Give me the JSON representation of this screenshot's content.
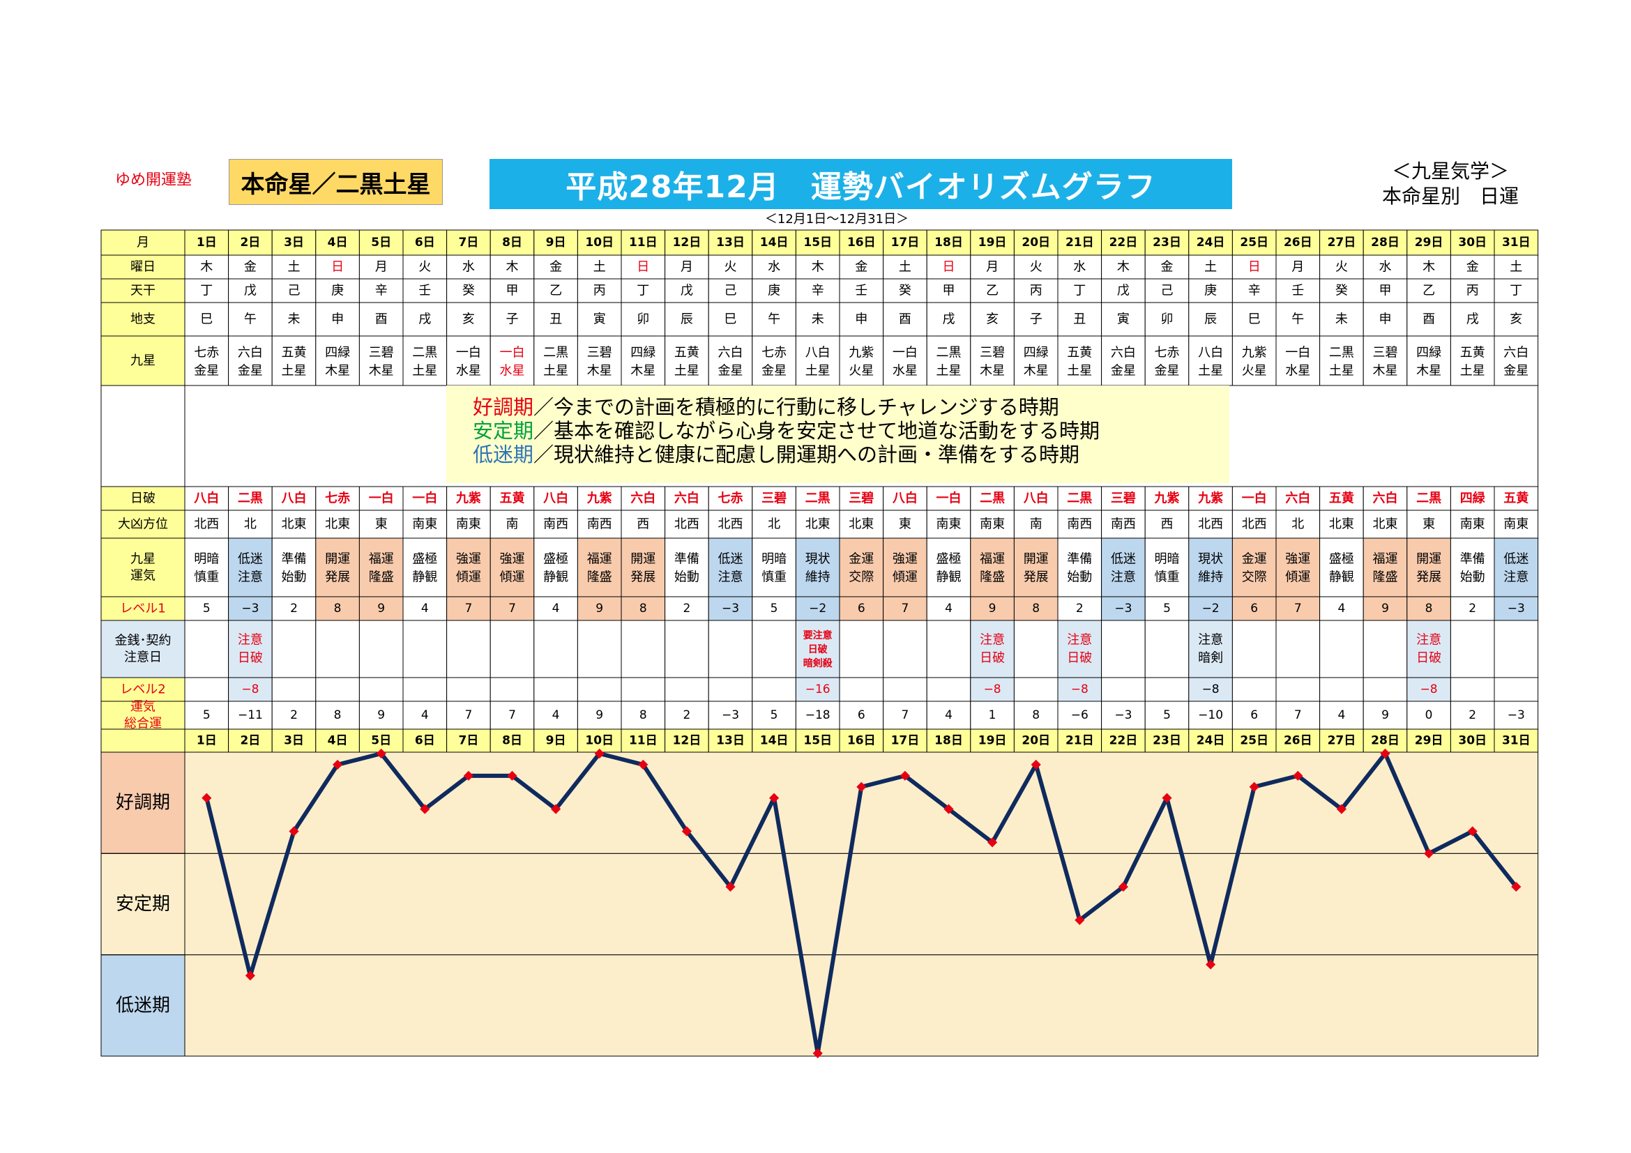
{
  "header": {
    "school": "ゆめ開運塾",
    "honmei": "本命星／二黒土星",
    "title": "平成28年12月　運勢バイオリズムグラフ",
    "right_line1": "＜九星気学＞",
    "right_line2": "本命星別　日運",
    "date_range": "＜12月1日～12月31日＞"
  },
  "row_labels": {
    "month": "月",
    "weekday": "曜日",
    "kan": "天干",
    "shi": "地支",
    "kyusei": "九星",
    "nichiha": "日破",
    "daikyo": "大凶方位",
    "unki_line1": "九星",
    "unki_line2": "運気",
    "level1": "レベル1",
    "kinsen_line1": "金銭･契約",
    "kinsen_line2": "注意日",
    "level2": "レベル2",
    "total_line1": "運気",
    "total_line2": "総合運"
  },
  "legend": [
    {
      "key": "好調期",
      "text": "／今までの計画を積極的に行動に移しチャレンジする時期"
    },
    {
      "key": "安定期",
      "text": "／基本を確認しながら心身を安定させて地道な活動をする時期"
    },
    {
      "key": "低迷期",
      "text": "／現状維持と健康に配慮し開運期への計画・準備をする時期"
    }
  ],
  "bands": [
    "好調期",
    "安定期",
    "低迷期"
  ],
  "colors": {
    "header_fill": "#ffff99",
    "level_red": "#e60012",
    "kocho": "#f8cbad",
    "teimei": "#bdd7ee",
    "light_blue": "#dbe9f5",
    "chart_bg": "#fdeecb",
    "line": "#0f2a5e",
    "point": "#e60012"
  },
  "days": [
    "1日",
    "2日",
    "3日",
    "4日",
    "5日",
    "6日",
    "7日",
    "8日",
    "9日",
    "10日",
    "11日",
    "12日",
    "13日",
    "14日",
    "15日",
    "16日",
    "17日",
    "18日",
    "19日",
    "20日",
    "21日",
    "22日",
    "23日",
    "24日",
    "25日",
    "26日",
    "27日",
    "28日",
    "29日",
    "30日",
    "31日"
  ],
  "weekdays": [
    "木",
    "金",
    "土",
    "日",
    "月",
    "火",
    "水",
    "木",
    "金",
    "土",
    "日",
    "月",
    "火",
    "水",
    "木",
    "金",
    "土",
    "日",
    "月",
    "火",
    "水",
    "木",
    "金",
    "土",
    "日",
    "月",
    "火",
    "水",
    "木",
    "金",
    "土"
  ],
  "weekday_red": [
    false,
    false,
    false,
    true,
    false,
    false,
    false,
    false,
    false,
    false,
    true,
    false,
    false,
    false,
    false,
    false,
    false,
    true,
    false,
    false,
    false,
    false,
    false,
    false,
    true,
    false,
    false,
    false,
    false,
    false,
    false
  ],
  "kan": [
    "丁",
    "戊",
    "己",
    "庚",
    "辛",
    "壬",
    "癸",
    "甲",
    "乙",
    "丙",
    "丁",
    "戊",
    "己",
    "庚",
    "辛",
    "壬",
    "癸",
    "甲",
    "乙",
    "丙",
    "丁",
    "戊",
    "己",
    "庚",
    "辛",
    "壬",
    "癸",
    "甲",
    "乙",
    "丙",
    "丁"
  ],
  "shi": [
    "巳",
    "午",
    "未",
    "申",
    "酉",
    "戌",
    "亥",
    "子",
    "丑",
    "寅",
    "卯",
    "辰",
    "巳",
    "午",
    "未",
    "申",
    "酉",
    "戌",
    "亥",
    "子",
    "丑",
    "寅",
    "卯",
    "辰",
    "巳",
    "午",
    "未",
    "申",
    "酉",
    "戌",
    "亥"
  ],
  "kyusei": [
    [
      "七赤",
      "金星"
    ],
    [
      "六白",
      "金星"
    ],
    [
      "五黄",
      "土星"
    ],
    [
      "四緑",
      "木星"
    ],
    [
      "三碧",
      "木星"
    ],
    [
      "二黒",
      "土星"
    ],
    [
      "一白",
      "水星"
    ],
    [
      "一白",
      "水星"
    ],
    [
      "二黒",
      "土星"
    ],
    [
      "三碧",
      "木星"
    ],
    [
      "四緑",
      "木星"
    ],
    [
      "五黄",
      "土星"
    ],
    [
      "六白",
      "金星"
    ],
    [
      "七赤",
      "金星"
    ],
    [
      "八白",
      "土星"
    ],
    [
      "九紫",
      "火星"
    ],
    [
      "一白",
      "水星"
    ],
    [
      "二黒",
      "土星"
    ],
    [
      "三碧",
      "木星"
    ],
    [
      "四緑",
      "木星"
    ],
    [
      "五黄",
      "土星"
    ],
    [
      "六白",
      "金星"
    ],
    [
      "七赤",
      "金星"
    ],
    [
      "八白",
      "土星"
    ],
    [
      "九紫",
      "火星"
    ],
    [
      "一白",
      "水星"
    ],
    [
      "二黒",
      "土星"
    ],
    [
      "三碧",
      "木星"
    ],
    [
      "四緑",
      "木星"
    ],
    [
      "五黄",
      "土星"
    ],
    [
      "六白",
      "金星"
    ]
  ],
  "kyusei_red_index": 7,
  "nichiha": [
    "八白",
    "二黒",
    "八白",
    "七赤",
    "一白",
    "一白",
    "九紫",
    "五黄",
    "八白",
    "九紫",
    "六白",
    "六白",
    "七赤",
    "三碧",
    "二黒",
    "三碧",
    "八白",
    "一白",
    "二黒",
    "八白",
    "二黒",
    "三碧",
    "九紫",
    "九紫",
    "一白",
    "六白",
    "五黄",
    "六白",
    "二黒",
    "四緑",
    "五黄"
  ],
  "daikyo": [
    "北西",
    "北",
    "北東",
    "北東",
    "東",
    "南東",
    "南東",
    "南",
    "南西",
    "南西",
    "西",
    "北西",
    "北西",
    "北",
    "北東",
    "北東",
    "東",
    "南東",
    "南東",
    "南",
    "南西",
    "南西",
    "西",
    "北西",
    "北西",
    "北",
    "北東",
    "北東",
    "東",
    "南東",
    "南東"
  ],
  "unki": [
    [
      "明暗",
      "慎重"
    ],
    [
      "低迷",
      "注意"
    ],
    [
      "準備",
      "始動"
    ],
    [
      "開運",
      "発展"
    ],
    [
      "福運",
      "隆盛"
    ],
    [
      "盛極",
      "静観"
    ],
    [
      "強運",
      "傾運"
    ],
    [
      "強運",
      "傾運"
    ],
    [
      "盛極",
      "静観"
    ],
    [
      "福運",
      "隆盛"
    ],
    [
      "開運",
      "発展"
    ],
    [
      "準備",
      "始動"
    ],
    [
      "低迷",
      "注意"
    ],
    [
      "明暗",
      "慎重"
    ],
    [
      "現状",
      "維持"
    ],
    [
      "金運",
      "交際"
    ],
    [
      "強運",
      "傾運"
    ],
    [
      "盛極",
      "静観"
    ],
    [
      "福運",
      "隆盛"
    ],
    [
      "開運",
      "発展"
    ],
    [
      "準備",
      "始動"
    ],
    [
      "低迷",
      "注意"
    ],
    [
      "明暗",
      "慎重"
    ],
    [
      "現状",
      "維持"
    ],
    [
      "金運",
      "交際"
    ],
    [
      "強運",
      "傾運"
    ],
    [
      "盛極",
      "静観"
    ],
    [
      "福運",
      "隆盛"
    ],
    [
      "開運",
      "発展"
    ],
    [
      "準備",
      "始動"
    ],
    [
      "低迷",
      "注意"
    ]
  ],
  "level1": [
    "5",
    "−3",
    "2",
    "8",
    "9",
    "4",
    "7",
    "7",
    "4",
    "9",
    "8",
    "2",
    "−3",
    "5",
    "−2",
    "6",
    "7",
    "4",
    "9",
    "8",
    "2",
    "−3",
    "5",
    "−2",
    "6",
    "7",
    "4",
    "9",
    "8",
    "2",
    "−3"
  ],
  "kinsen": [
    [],
    [
      "注意",
      "日破"
    ],
    [],
    [],
    [],
    [],
    [],
    [],
    [],
    [],
    [],
    [],
    [],
    [],
    [
      "要注意",
      "日破",
      "暗剣殺"
    ],
    [],
    [],
    [],
    [
      "注意",
      "日破"
    ],
    [],
    [
      "注意",
      "日破"
    ],
    [],
    [],
    [
      "注意",
      "暗剣"
    ],
    [],
    [],
    [],
    [],
    [
      "注意",
      "日破"
    ],
    [],
    []
  ],
  "level2": [
    "",
    "−8",
    "",
    "",
    "",
    "",
    "",
    "",
    "",
    "",
    "",
    "",
    "",
    "",
    "−16",
    "",
    "",
    "",
    "−8",
    "",
    "−8",
    "",
    "",
    "−8",
    "",
    "",
    "",
    "",
    "−8",
    "",
    ""
  ],
  "total": [
    "5",
    "−11",
    "2",
    "8",
    "9",
    "4",
    "7",
    "7",
    "4",
    "9",
    "8",
    "2",
    "−3",
    "5",
    "−18",
    "6",
    "7",
    "4",
    "1",
    "8",
    "−6",
    "−3",
    "5",
    "−10",
    "6",
    "7",
    "4",
    "9",
    "0",
    "2",
    "−3"
  ],
  "chart_data": {
    "type": "line",
    "x": [
      "1日",
      "2日",
      "3日",
      "4日",
      "5日",
      "6日",
      "7日",
      "8日",
      "9日",
      "10日",
      "11日",
      "12日",
      "13日",
      "14日",
      "15日",
      "16日",
      "17日",
      "18日",
      "19日",
      "20日",
      "21日",
      "22日",
      "23日",
      "24日",
      "25日",
      "26日",
      "27日",
      "28日",
      "29日",
      "30日",
      "31日"
    ],
    "series": [
      {
        "values": [
          5,
          -11,
          2,
          8,
          9,
          4,
          7,
          7,
          4,
          9,
          8,
          2,
          -3,
          5,
          -18,
          6,
          7,
          4,
          1,
          8,
          -6,
          -3,
          5,
          -10,
          6,
          7,
          4,
          9,
          0,
          2,
          -3
        ]
      }
    ],
    "bands": [
      "好調期",
      "安定期",
      "低迷期"
    ],
    "ylim": [
      -18,
      9
    ],
    "grid": false
  }
}
